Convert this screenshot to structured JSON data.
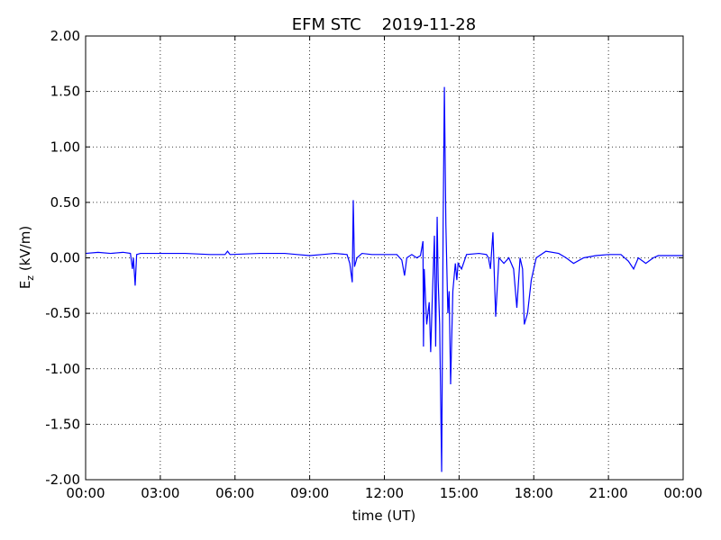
{
  "chart_data": {
    "type": "line",
    "title": "EFM STC    2019-11-28",
    "xlabel": "time (UT)",
    "ylabel_parts": [
      "E",
      "z",
      " (kV/m)"
    ],
    "grid": true,
    "xlim": [
      0,
      24
    ],
    "xticks": [
      {
        "value": 0,
        "label": "00:00"
      },
      {
        "value": 3,
        "label": "03:00"
      },
      {
        "value": 6,
        "label": "06:00"
      },
      {
        "value": 9,
        "label": "09:00"
      },
      {
        "value": 12,
        "label": "12:00"
      },
      {
        "value": 15,
        "label": "15:00"
      },
      {
        "value": 18,
        "label": "18:00"
      },
      {
        "value": 21,
        "label": "21:00"
      },
      {
        "value": 24,
        "label": "00:00"
      }
    ],
    "ylim": [
      -2,
      2
    ],
    "yticks": [
      {
        "value": 2,
        "label": "2.00"
      },
      {
        "value": 1.5,
        "label": "1.50"
      },
      {
        "value": 1,
        "label": "1.00"
      },
      {
        "value": 0.5,
        "label": "0.50"
      },
      {
        "value": 0,
        "label": "0.00"
      },
      {
        "value": -0.5,
        "label": "-0.50"
      },
      {
        "value": -1,
        "label": "-1.00"
      },
      {
        "value": -1.5,
        "label": "-1.50"
      },
      {
        "value": -2,
        "label": "-2.00"
      }
    ],
    "series": [
      {
        "color": "#0000ff",
        "x": [
          0,
          0.5,
          1.0,
          1.5,
          1.8,
          1.88,
          1.92,
          1.99,
          2.05,
          2.2,
          3.0,
          4.0,
          5.0,
          5.6,
          5.7,
          5.8,
          7.0,
          8.0,
          8.5,
          9.0,
          9.5,
          10.0,
          10.5,
          10.61,
          10.71,
          10.75,
          10.8,
          10.9,
          11.1,
          11.5,
          12.0,
          12.5,
          12.7,
          12.81,
          12.9,
          13.1,
          13.3,
          13.45,
          13.55,
          13.57,
          13.6,
          13.7,
          13.8,
          13.86,
          13.92,
          14.01,
          14.06,
          14.12,
          14.16,
          14.22,
          14.3,
          14.36,
          14.41,
          14.47,
          14.55,
          14.6,
          14.66,
          14.75,
          14.85,
          14.91,
          14.96,
          15.1,
          15.3,
          15.8,
          16.1,
          16.18,
          16.26,
          16.36,
          16.47,
          16.6,
          16.8,
          17.0,
          17.19,
          17.32,
          17.45,
          17.55,
          17.62,
          17.75,
          17.9,
          18.1,
          18.49,
          19.0,
          19.3,
          19.6,
          20.0,
          20.5,
          21.0,
          21.5,
          21.8,
          22.01,
          22.2,
          22.5,
          22.8,
          23.0,
          23.5,
          24.0
        ],
        "values": [
          0.04,
          0.05,
          0.04,
          0.05,
          0.04,
          -0.1,
          0.0,
          -0.25,
          0.03,
          0.04,
          0.04,
          0.04,
          0.03,
          0.03,
          0.06,
          0.03,
          0.04,
          0.04,
          0.03,
          0.02,
          0.03,
          0.04,
          0.03,
          -0.05,
          -0.22,
          0.52,
          -0.08,
          0.0,
          0.04,
          0.03,
          0.03,
          0.03,
          -0.02,
          -0.16,
          0.0,
          0.03,
          0.0,
          0.02,
          0.15,
          -0.8,
          -0.1,
          -0.6,
          -0.4,
          -0.85,
          -0.4,
          0.2,
          -0.8,
          0.37,
          -0.2,
          -0.6,
          -1.93,
          0.3,
          1.54,
          0.3,
          -0.5,
          -0.3,
          -1.14,
          -0.3,
          -0.05,
          -0.2,
          -0.05,
          -0.1,
          0.03,
          0.04,
          0.03,
          0.0,
          -0.1,
          0.23,
          -0.53,
          0.0,
          -0.05,
          0.0,
          -0.1,
          -0.45,
          0.0,
          -0.1,
          -0.6,
          -0.5,
          -0.2,
          0.0,
          0.06,
          0.04,
          0.0,
          -0.05,
          0.0,
          0.02,
          0.03,
          0.03,
          -0.03,
          -0.1,
          0.0,
          -0.05,
          0.0,
          0.02,
          0.02,
          0.02
        ]
      }
    ]
  }
}
